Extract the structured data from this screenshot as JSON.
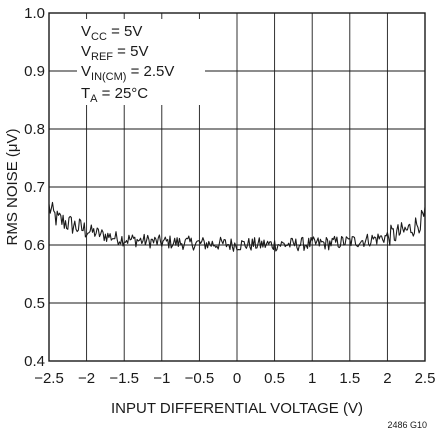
{
  "chart_data": {
    "type": "line",
    "xlabel": "INPUT DIFFERENTIAL VOLTAGE (V)",
    "ylabel": "RMS NOISE (μV)",
    "xlim": [
      -2.5,
      2.5
    ],
    "ylim": [
      0.4,
      1.0
    ],
    "x_ticks": [
      "−2.5",
      "−2",
      "−1.5",
      "−1",
      "−0.5",
      "0",
      "0.5",
      "1",
      "1.5",
      "2",
      "2.5"
    ],
    "y_ticks": [
      "0.4",
      "0.5",
      "0.6",
      "0.7",
      "0.8",
      "0.9",
      "1.0"
    ],
    "grid": true,
    "annotation_lines": [
      {
        "main": "V",
        "sub": "CC",
        "rest": " = 5V"
      },
      {
        "main": "V",
        "sub": "REF",
        "rest": " = 5V"
      },
      {
        "main": "V",
        "sub": "IN(CM)",
        "rest": " = 2.5V"
      },
      {
        "main": "T",
        "sub": "A",
        "rest": " = 25°C"
      }
    ],
    "figure_id": "2486 G10",
    "series": [
      {
        "x": [
          -2.5,
          -2.4,
          -2.3,
          -2.2,
          -2.1,
          -2.0,
          -1.9,
          -1.8,
          -1.7,
          -1.6,
          -1.5,
          -1.4,
          -1.3,
          -1.2,
          -1.1,
          -1.0,
          -0.9,
          -0.8,
          -0.7,
          -0.6,
          -0.5,
          -0.4,
          -0.3,
          -0.2,
          -0.1,
          0.0,
          0.1,
          0.2,
          0.3,
          0.4,
          0.5,
          0.6,
          0.7,
          0.8,
          0.9,
          1.0,
          1.1,
          1.2,
          1.3,
          1.4,
          1.5,
          1.6,
          1.7,
          1.8,
          1.9,
          2.0,
          2.1,
          2.2,
          2.3,
          2.4,
          2.5
        ],
        "y": [
          0.665,
          0.645,
          0.64,
          0.635,
          0.63,
          0.625,
          0.622,
          0.618,
          0.615,
          0.612,
          0.61,
          0.609,
          0.608,
          0.607,
          0.606,
          0.605,
          0.605,
          0.604,
          0.604,
          0.603,
          0.603,
          0.602,
          0.602,
          0.602,
          0.601,
          0.601,
          0.601,
          0.601,
          0.601,
          0.601,
          0.601,
          0.601,
          0.601,
          0.601,
          0.602,
          0.602,
          0.603,
          0.603,
          0.604,
          0.605,
          0.606,
          0.607,
          0.608,
          0.61,
          0.612,
          0.615,
          0.618,
          0.622,
          0.628,
          0.636,
          0.648
        ],
        "noise_amplitude": 0.012
      }
    ]
  }
}
